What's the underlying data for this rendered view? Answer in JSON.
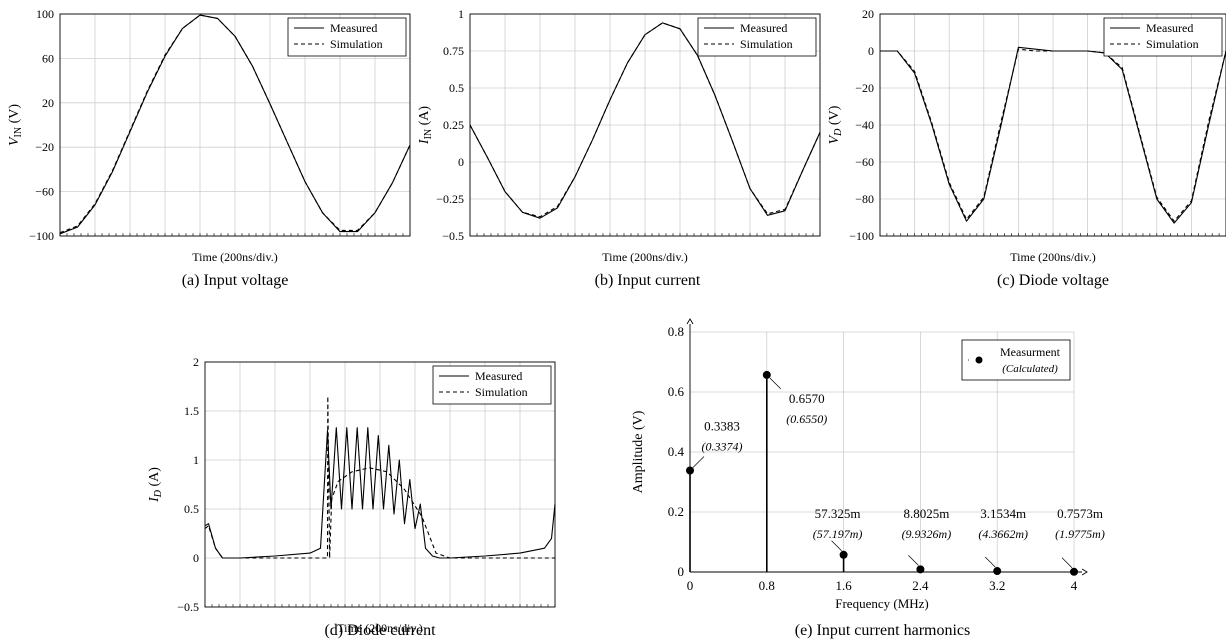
{
  "chart_data": [
    {
      "type": "line",
      "caption": "(a) Input voltage",
      "xlabel": "Time (200ns/div.)",
      "ylabel": "V_IN (V)",
      "ylim": [
        -100,
        100
      ],
      "yticks": [
        -100,
        -60,
        -20,
        20,
        60,
        100
      ],
      "grid": true,
      "legend_position": "top-right",
      "series": [
        {
          "name": "Measured",
          "style": "solid",
          "x": [
            0,
            0.5,
            1,
            1.5,
            2,
            2.5,
            3,
            3.5,
            4,
            4.5,
            5,
            5.5,
            6,
            6.5,
            7,
            7.5,
            8,
            8.5,
            9,
            9.5,
            10
          ],
          "y": [
            -98,
            -92,
            -72,
            -42,
            -6,
            30,
            62,
            87,
            99,
            96,
            80,
            53,
            19,
            -16,
            -51,
            -79,
            -96,
            -96,
            -79,
            -52,
            -18
          ]
        },
        {
          "name": "Simulation",
          "style": "dashed",
          "x": [
            0,
            0.5,
            1,
            1.5,
            2,
            2.5,
            3,
            3.5,
            4,
            4.5,
            5,
            5.5,
            6,
            6.5,
            7,
            7.5,
            8,
            8.5,
            9,
            9.5,
            10
          ],
          "y": [
            -97,
            -91,
            -71,
            -41,
            -5,
            31,
            63,
            87,
            99,
            96,
            80,
            53,
            19,
            -16,
            -51,
            -79,
            -95,
            -95,
            -79,
            -52,
            -18
          ]
        }
      ]
    },
    {
      "type": "line",
      "caption": "(b) Input current",
      "xlabel": "Time (200ns/div.)",
      "ylabel": "I_IN (A)",
      "ylim": [
        -0.5,
        1
      ],
      "yticks": [
        -0.5,
        -0.25,
        0,
        0.25,
        0.5,
        0.75,
        1
      ],
      "ytick_labels": [
        "−0.5",
        "−0.25",
        "0",
        "0.25",
        "0.5",
        "0.75",
        "1"
      ],
      "grid": true,
      "legend_position": "top-right",
      "series": [
        {
          "name": "Measured",
          "style": "solid",
          "x": [
            0,
            0.5,
            1,
            1.5,
            2,
            2.5,
            3,
            3.5,
            4,
            4.5,
            5,
            5.5,
            6,
            6.5,
            7,
            7.5,
            8,
            8.5,
            9,
            9.5,
            10
          ],
          "y": [
            0.25,
            0.03,
            -0.2,
            -0.34,
            -0.38,
            -0.31,
            -0.1,
            0.15,
            0.42,
            0.67,
            0.86,
            0.94,
            0.9,
            0.72,
            0.45,
            0.14,
            -0.18,
            -0.36,
            -0.33,
            -0.06,
            0.2
          ]
        },
        {
          "name": "Simulation",
          "style": "dashed",
          "x": [
            0,
            0.5,
            1,
            1.5,
            2,
            2.5,
            3,
            3.5,
            4,
            4.5,
            5,
            5.5,
            6,
            6.5,
            7,
            7.5,
            8,
            8.5,
            9,
            9.5,
            10
          ],
          "y": [
            0.25,
            0.03,
            -0.2,
            -0.34,
            -0.37,
            -0.3,
            -0.1,
            0.15,
            0.42,
            0.67,
            0.86,
            0.94,
            0.9,
            0.72,
            0.45,
            0.14,
            -0.18,
            -0.35,
            -0.32,
            -0.06,
            0.2
          ]
        }
      ]
    },
    {
      "type": "line",
      "caption": "(c) Diode voltage",
      "xlabel": "Time (200ns/div.)",
      "ylabel": "V_D (V)",
      "ylim": [
        -100,
        20
      ],
      "yticks": [
        -100,
        -80,
        -60,
        -40,
        -20,
        0,
        20
      ],
      "grid": true,
      "legend_position": "top-right",
      "series": [
        {
          "name": "Measured",
          "style": "solid",
          "x": [
            0,
            0.5,
            1,
            1.5,
            2,
            2.5,
            3,
            3.5,
            4,
            4.5,
            5,
            5.5,
            6,
            6.5,
            7,
            7.5,
            8,
            8.5,
            9,
            9.5,
            10
          ],
          "y": [
            0,
            0,
            -12,
            -40,
            -72,
            -92,
            -80,
            -40,
            2,
            1,
            0,
            0,
            0,
            -1,
            -10,
            -45,
            -80,
            -93,
            -82,
            -40,
            0
          ]
        },
        {
          "name": "Simulation",
          "style": "dashed",
          "x": [
            0,
            0.5,
            1,
            1.5,
            2,
            2.5,
            3,
            3.5,
            4,
            4.5,
            5,
            5.5,
            6,
            6.5,
            7,
            7.5,
            8,
            8.5,
            9,
            9.5,
            10
          ],
          "y": [
            0,
            0,
            -11,
            -39,
            -71,
            -91,
            -79,
            -38,
            1,
            0,
            0,
            0,
            0,
            -1,
            -9,
            -44,
            -79,
            -92,
            -81,
            -38,
            0
          ]
        }
      ]
    },
    {
      "type": "line",
      "caption": "(d) Diode current",
      "xlabel": "Time (200ns/div.)",
      "ylabel": "I_D (A)",
      "ylim": [
        -0.5,
        2
      ],
      "yticks": [
        -0.5,
        0,
        0.5,
        1,
        1.5,
        2
      ],
      "ytick_labels": [
        "−0.5",
        "0",
        "0.5",
        "1",
        "1.5",
        "2"
      ],
      "grid": true,
      "legend_position": "top-right",
      "series": [
        {
          "name": "Measured",
          "style": "solid",
          "x": [
            0,
            0.1,
            0.3,
            0.5,
            1,
            2,
            3,
            3.3,
            3.5,
            3.6,
            3.75,
            3.9,
            4.05,
            4.2,
            4.35,
            4.5,
            4.65,
            4.8,
            4.95,
            5.1,
            5.25,
            5.4,
            5.55,
            5.7,
            5.85,
            6,
            6.15,
            6.3,
            6.5,
            6.7,
            7,
            8,
            9,
            9.7,
            9.9,
            10
          ],
          "y": [
            0.33,
            0.35,
            0.1,
            0,
            0,
            0.02,
            0.05,
            0.1,
            1.3,
            0.5,
            1.33,
            0.5,
            1.33,
            0.5,
            1.33,
            0.5,
            1.33,
            0.5,
            1.25,
            0.5,
            1.15,
            0.45,
            1.0,
            0.35,
            0.8,
            0.3,
            0.55,
            0.1,
            0.02,
            0,
            0,
            0.02,
            0.05,
            0.1,
            0.2,
            0.55
          ]
        },
        {
          "name": "Simulation",
          "style": "dashed",
          "x": [
            0,
            0.1,
            0.3,
            0.5,
            1,
            2,
            3,
            3.3,
            3.5,
            3.51,
            3.56,
            3.62,
            3.8,
            4.2,
            4.7,
            5.2,
            5.7,
            6.2,
            6.6,
            7,
            8,
            9,
            10
          ],
          "y": [
            0.3,
            0.33,
            0.1,
            0,
            0,
            0,
            0,
            0,
            0,
            1.65,
            0,
            0.6,
            0.78,
            0.88,
            0.92,
            0.88,
            0.7,
            0.42,
            0.05,
            0,
            0,
            0,
            0
          ]
        }
      ]
    },
    {
      "type": "scatter",
      "caption": "(e) Input current harmonics",
      "xlabel": "Frequency (MHz)",
      "ylabel": "Amplitude (V)",
      "xlim": [
        0,
        4
      ],
      "ylim": [
        0,
        0.8
      ],
      "xticks": [
        0,
        0.8,
        1.6,
        2.4,
        3.2,
        4
      ],
      "yticks": [
        0,
        0.2,
        0.4,
        0.6,
        0.8
      ],
      "grid": true,
      "legend_position": "top-right",
      "legend": {
        "name": "Measurment",
        "sub": "(Calculated)"
      },
      "points": [
        {
          "x": 0,
          "y": 0.3383,
          "label": "0.3383",
          "calc": "(0.3374)"
        },
        {
          "x": 0.8,
          "y": 0.657,
          "label": "0.6570",
          "calc": "(0.6550)"
        },
        {
          "x": 1.6,
          "y": 0.057325,
          "label": "57.325m",
          "calc": "(57.197m)"
        },
        {
          "x": 2.4,
          "y": 0.0088025,
          "label": "8.8025m",
          "calc": "(9.9326m)"
        },
        {
          "x": 3.2,
          "y": 0.0031534,
          "label": "3.1534m",
          "calc": "(4.3662m)"
        },
        {
          "x": 4,
          "y": 0.0007573,
          "label": "0.7573m",
          "calc": "(1.9775m)"
        }
      ]
    }
  ]
}
